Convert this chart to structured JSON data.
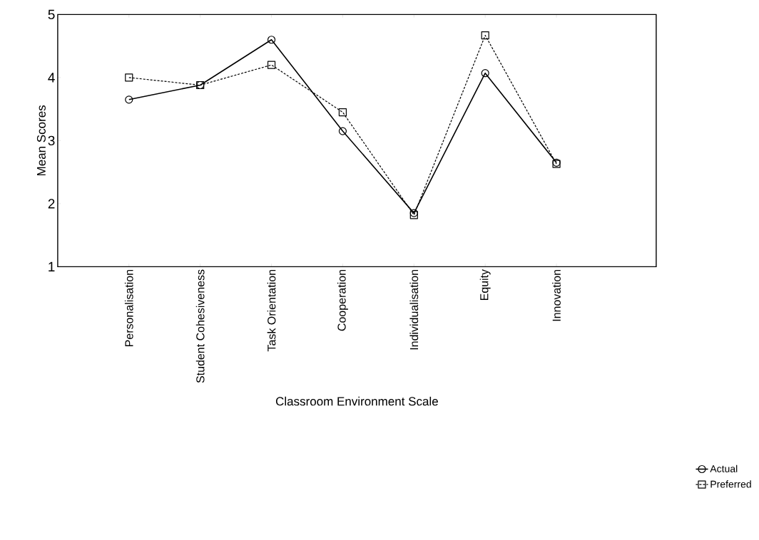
{
  "chart_data": {
    "type": "line",
    "xlabel": "Classroom Environment Scale",
    "ylabel": "Mean Scores",
    "categories": [
      "Personalisation",
      "Student Cohesiveness",
      "Task Orientation",
      "Cooperation",
      "Individualisation",
      "Equity",
      "Innovation"
    ],
    "series": [
      {
        "name": "Actual",
        "color": "#000000",
        "marker": "circle",
        "line_style": "solid",
        "values": [
          3.65,
          3.88,
          4.6,
          3.15,
          1.85,
          4.07,
          2.65
        ]
      },
      {
        "name": "Preferred",
        "color": "#000000",
        "marker": "square",
        "line_style": "dashed",
        "values": [
          4.0,
          3.88,
          4.2,
          3.45,
          1.82,
          4.67,
          2.63
        ]
      }
    ],
    "ylim": [
      1,
      5
    ],
    "yticks": [
      1,
      2,
      3,
      4,
      5
    ],
    "grid": false,
    "legend": "bottom right"
  }
}
